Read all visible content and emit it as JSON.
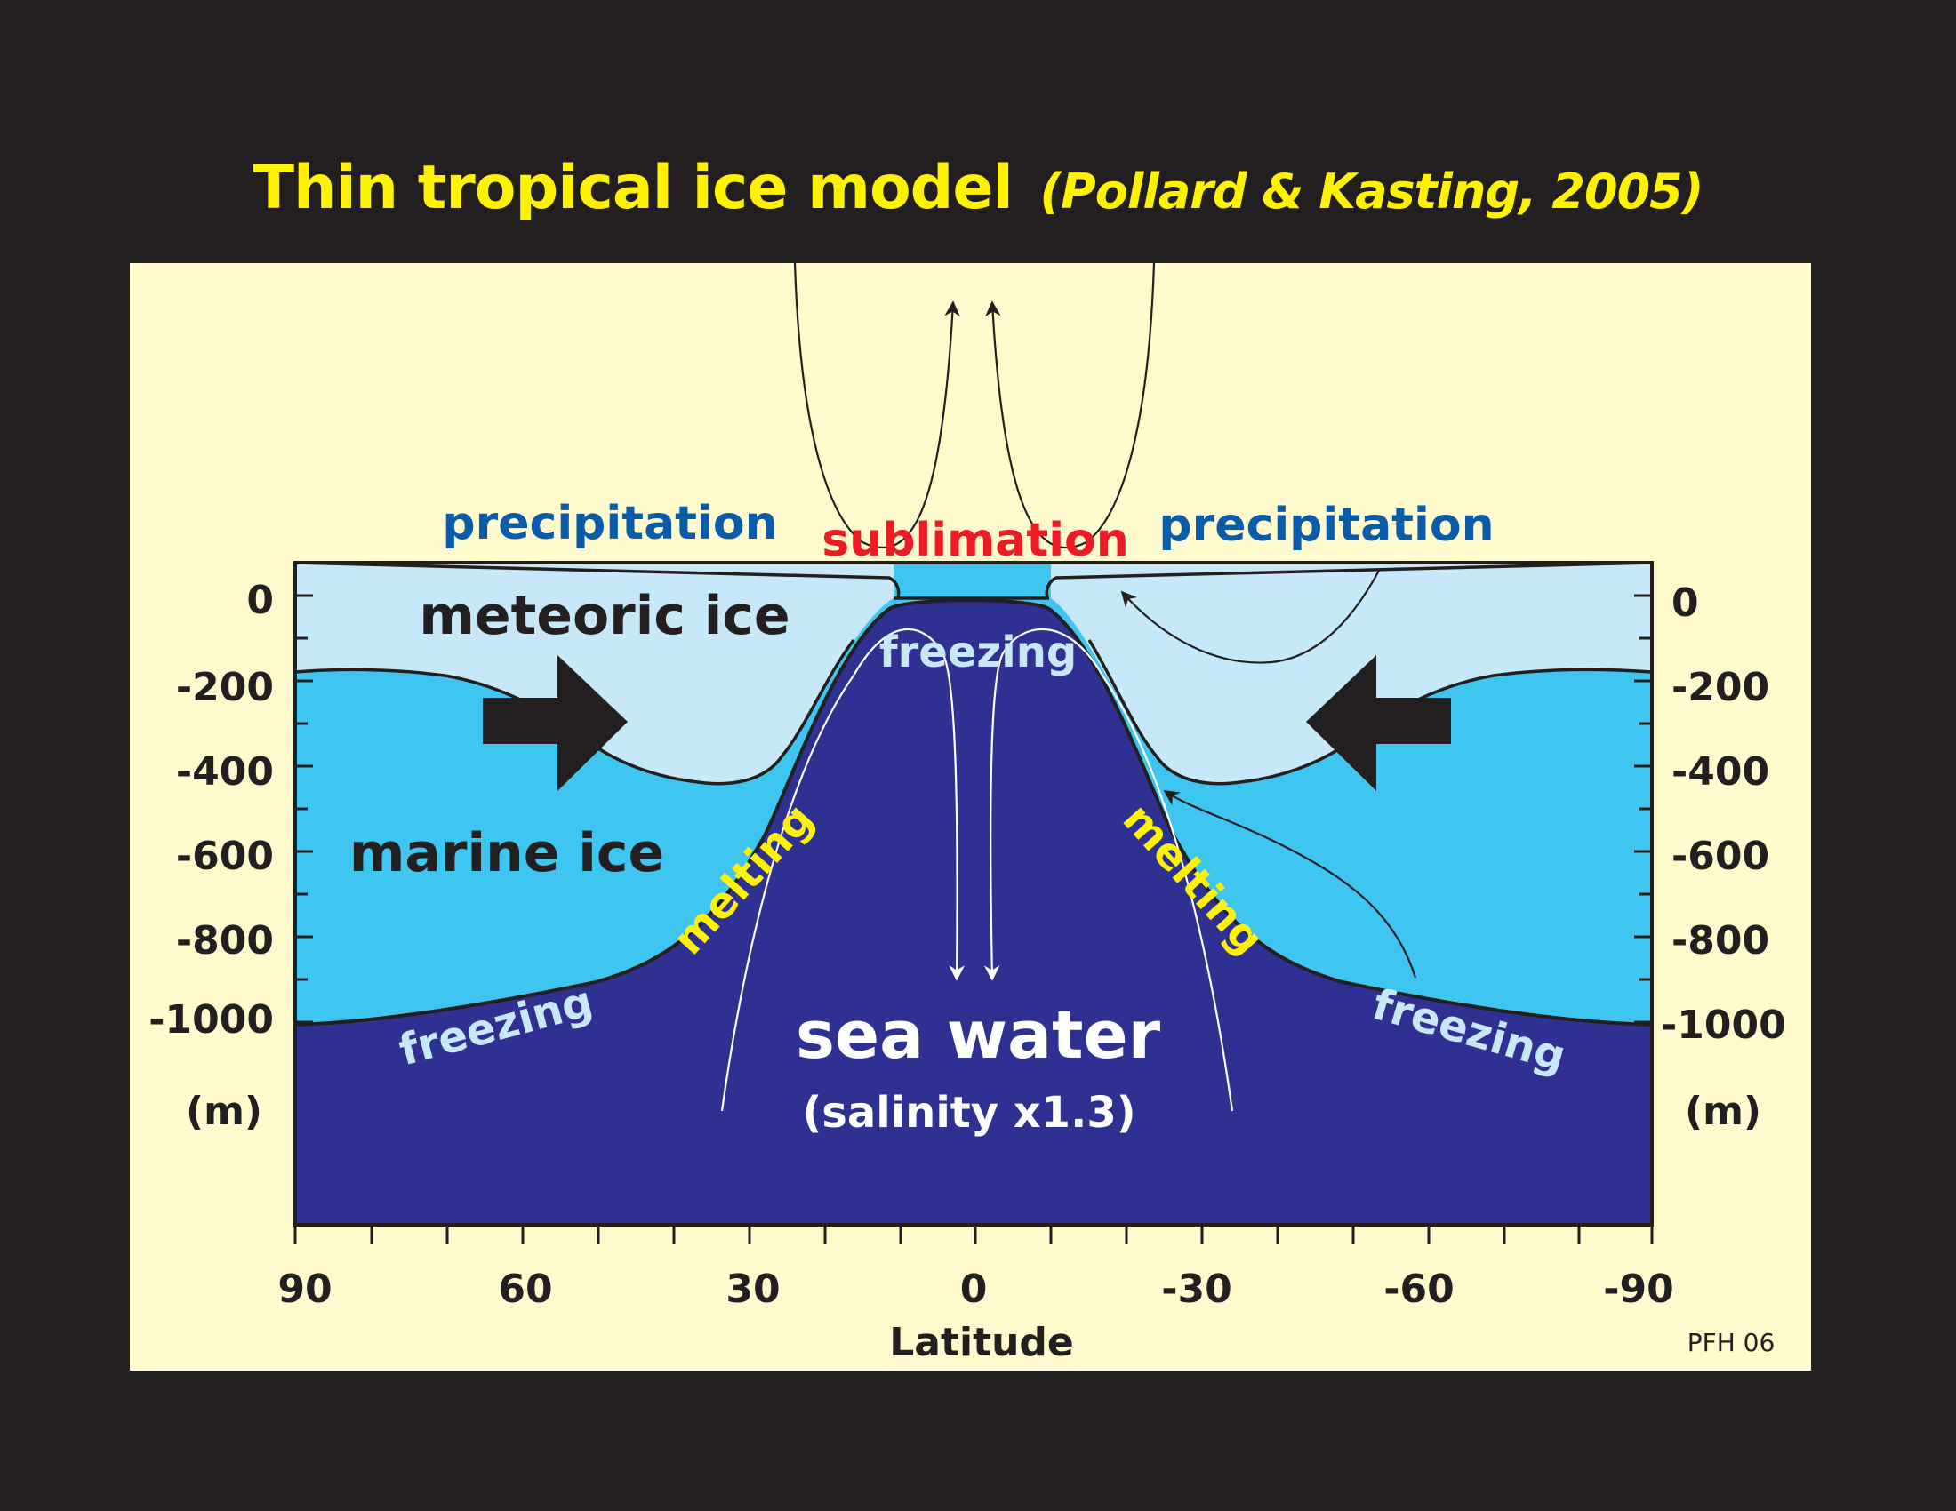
{
  "title": {
    "main": "Thin tropical ice model",
    "citation": "(Pollard & Kasting, 2005)"
  },
  "labels": {
    "precipitation_left": "precipitation",
    "precipitation_right": "precipitation",
    "sublimation": "sublimation",
    "meteoric_ice": "meteoric ice",
    "marine_ice": "marine ice",
    "freezing_top": "freezing",
    "freezing_left": "freezing",
    "freezing_right": "freezing",
    "melting_left": "melting",
    "melting_right": "melting",
    "sea_water": "sea water",
    "salinity": "(salinity x1.3)"
  },
  "axes": {
    "x_label": "Latitude",
    "x_ticks": [
      "90",
      "60",
      "30",
      "0",
      "-30",
      "-60",
      "-90"
    ],
    "y_ticks_left": [
      "0",
      "-200",
      "-400",
      "-600",
      "-800",
      "-1000"
    ],
    "y_ticks_right": [
      "0",
      "-200",
      "-400",
      "-600",
      "-800",
      "-1000"
    ],
    "y_unit": "(m)"
  },
  "credit": "PFH 06",
  "colors": {
    "background": "#231f20",
    "panel": "#fffacd",
    "meteoric_ice": "#c7e8f8",
    "marine_ice": "#3ec6f0",
    "sea_water": "#2e3192",
    "title": "#fff200",
    "precipitation_text": "#0b5ca8",
    "sublimation_text": "#ed1c24",
    "melting_text": "#fff200",
    "freezing_text": "#c7e8f8"
  }
}
